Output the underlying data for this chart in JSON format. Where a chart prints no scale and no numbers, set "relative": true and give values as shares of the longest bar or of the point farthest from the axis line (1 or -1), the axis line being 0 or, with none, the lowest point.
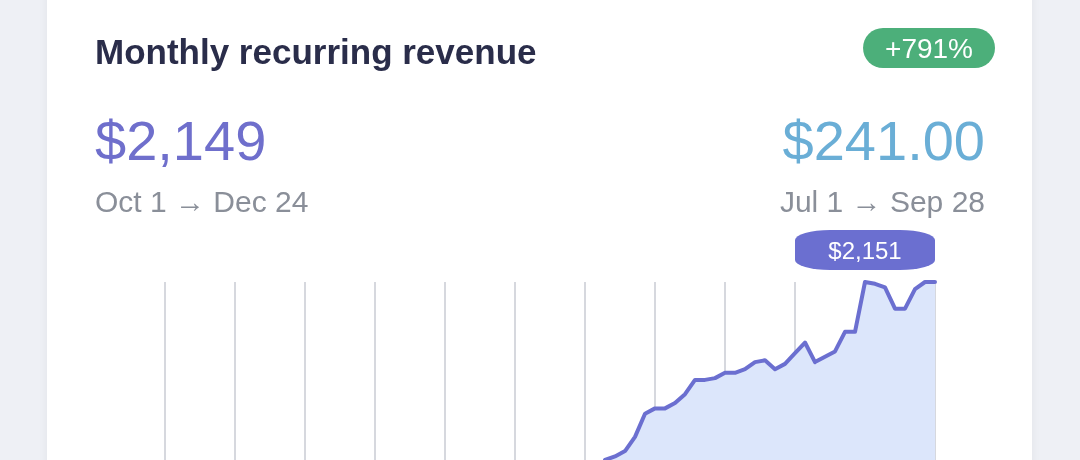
{
  "chart_data": {
    "type": "area",
    "title": "Monthly recurring revenue",
    "relative": true,
    "grid": "x",
    "categories": [
      null,
      null,
      null,
      null,
      null,
      null,
      null,
      null,
      null,
      null,
      null,
      null,
      null,
      null,
      null,
      null,
      null,
      null,
      null,
      null,
      null,
      null,
      null,
      null,
      null,
      null,
      null,
      null,
      null,
      null,
      null,
      null,
      null,
      null,
      null,
      null,
      null,
      null,
      null,
      null,
      null,
      null,
      null,
      null,
      null,
      null,
      null,
      null,
      null,
      null,
      null,
      null,
      null,
      null,
      null,
      null,
      null,
      null,
      null,
      null,
      null,
      null,
      null,
      null,
      null,
      null,
      null,
      null,
      null,
      null,
      null,
      null,
      null,
      null,
      null,
      null,
      null,
      null
    ],
    "series": [
      {
        "color": "#6b6fd0",
        "values": [
          null,
          null,
          null,
          null,
          null,
          null,
          null,
          null,
          null,
          null,
          null,
          null,
          null,
          null,
          null,
          null,
          null,
          null,
          null,
          null,
          null,
          null,
          null,
          null,
          null,
          null,
          null,
          null,
          null,
          null,
          null,
          null,
          null,
          null,
          null,
          null,
          null,
          null,
          null,
          null,
          null,
          null,
          null,
          null,
          0,
          0.02,
          0.05,
          0.13,
          0.26,
          0.29,
          0.29,
          0.32,
          0.37,
          0.45,
          0.45,
          0.46,
          0.49,
          0.49,
          0.51,
          0.55,
          0.56,
          0.51,
          0.54,
          0.6,
          0.66,
          0.55,
          0.58,
          0.61,
          0.72,
          0.72,
          1,
          0.99,
          0.97,
          0.85,
          0.85,
          0.96,
          1,
          1
        ]
      }
    ],
    "annotations": [
      "+791%",
      "$2,149",
      "Oct 1 → Dec 24",
      "$241.00",
      "Jul 1 → Sep 28",
      {
        "text": "$2,151",
        "y": 1
      }
    ]
  }
}
